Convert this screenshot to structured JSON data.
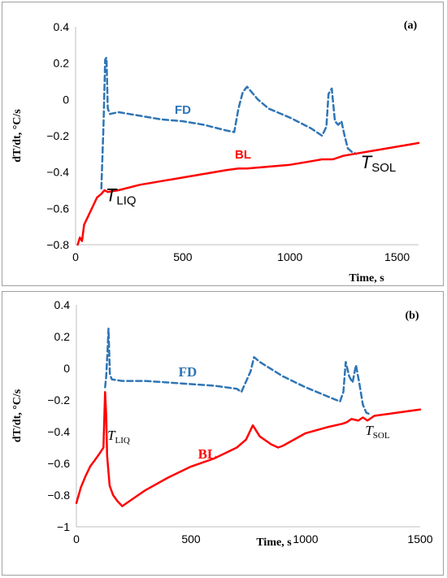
{
  "chart_data": [
    {
      "type": "line",
      "panel_label": "(a)",
      "xlabel": "Time, s",
      "ylabel": "dT/dt, °C/s",
      "xlim": [
        0,
        1600
      ],
      "ylim": [
        -0.8,
        0.4
      ],
      "xticks": [
        "0",
        "500",
        "1000",
        "1500"
      ],
      "yticks": [
        "−0.8",
        "−0.6",
        "−0.4",
        "−0.2",
        "0",
        "0.2",
        "0.4"
      ],
      "grid": false,
      "series": [
        {
          "name": "FD",
          "color": "#2e75b6",
          "style": "dashed",
          "x": [
            120,
            130,
            138,
            144,
            150,
            160,
            200,
            300,
            400,
            500,
            600,
            700,
            740,
            760,
            780,
            800,
            850,
            900,
            1000,
            1100,
            1150,
            1170,
            1180,
            1195,
            1210,
            1225,
            1240,
            1255,
            1270,
            1290,
            1310
          ],
          "y": [
            -0.49,
            -0.15,
            0.22,
            0.23,
            -0.05,
            -0.08,
            -0.07,
            -0.09,
            -0.11,
            -0.12,
            -0.14,
            -0.17,
            -0.18,
            -0.05,
            0.04,
            0.07,
            0.0,
            -0.05,
            -0.1,
            -0.16,
            -0.2,
            -0.15,
            0.03,
            0.06,
            -0.12,
            -0.14,
            -0.12,
            -0.2,
            -0.27,
            -0.29,
            -0.3
          ]
        },
        {
          "name": "BL",
          "color": "#ff0000",
          "style": "solid",
          "x": [
            10,
            20,
            30,
            40,
            60,
            80,
            100,
            120,
            135,
            150,
            200,
            300,
            400,
            500,
            600,
            700,
            760,
            800,
            900,
            1000,
            1100,
            1150,
            1200,
            1250,
            1300,
            1400,
            1500,
            1600
          ],
          "y": [
            -0.8,
            -0.76,
            -0.78,
            -0.69,
            -0.64,
            -0.59,
            -0.54,
            -0.52,
            -0.5,
            -0.51,
            -0.5,
            -0.47,
            -0.45,
            -0.43,
            -0.41,
            -0.39,
            -0.38,
            -0.38,
            -0.37,
            -0.36,
            -0.34,
            -0.33,
            -0.33,
            -0.31,
            -0.3,
            -0.28,
            -0.26,
            -0.24
          ]
        }
      ],
      "annotations": [
        {
          "base": "T",
          "sub": "LIQ",
          "x": 140,
          "y": -0.56
        },
        {
          "base": "T",
          "sub": "SOL",
          "x": 1330,
          "y": -0.38
        }
      ]
    },
    {
      "type": "line",
      "panel_label": "(b)",
      "xlabel": "Time, s",
      "ylabel": "dT/dt, °C/s",
      "xlim": [
        0,
        1500
      ],
      "ylim": [
        -1,
        0.4
      ],
      "xticks": [
        "0",
        "500",
        "1000",
        "1500"
      ],
      "yticks": [
        "−1",
        "−0.8",
        "−0.6",
        "−0.4",
        "−0.2",
        "0",
        "0.2",
        "0.4"
      ],
      "grid": false,
      "series": [
        {
          "name": "FD",
          "color": "#2e75b6",
          "style": "dashed",
          "x": [
            125,
            130,
            136,
            140,
            146,
            155,
            200,
            300,
            400,
            500,
            600,
            700,
            720,
            760,
            775,
            800,
            900,
            1000,
            1100,
            1150,
            1165,
            1175,
            1190,
            1205,
            1220,
            1235,
            1250,
            1265,
            1280
          ],
          "y": [
            -0.12,
            -0.05,
            0.12,
            0.25,
            -0.04,
            -0.07,
            -0.08,
            -0.08,
            -0.09,
            -0.1,
            -0.11,
            -0.13,
            -0.15,
            -0.02,
            0.07,
            0.04,
            -0.05,
            -0.12,
            -0.18,
            -0.21,
            -0.15,
            0.04,
            -0.05,
            -0.09,
            0.02,
            -0.1,
            -0.23,
            -0.28,
            -0.29
          ]
        },
        {
          "name": "BL",
          "color": "#ff0000",
          "style": "solid",
          "x": [
            0,
            10,
            20,
            40,
            60,
            80,
            100,
            118,
            125,
            130,
            134,
            138,
            145,
            160,
            180,
            200,
            250,
            300,
            400,
            500,
            600,
            700,
            740,
            770,
            800,
            850,
            880,
            900,
            1000,
            1100,
            1160,
            1180,
            1200,
            1230,
            1250,
            1270,
            1300,
            1400,
            1500
          ],
          "y": [
            -0.85,
            -0.8,
            -0.75,
            -0.68,
            -0.62,
            -0.58,
            -0.54,
            -0.5,
            -0.15,
            -0.3,
            -0.55,
            -0.62,
            -0.74,
            -0.8,
            -0.84,
            -0.87,
            -0.82,
            -0.77,
            -0.69,
            -0.62,
            -0.57,
            -0.5,
            -0.45,
            -0.36,
            -0.43,
            -0.48,
            -0.5,
            -0.49,
            -0.41,
            -0.37,
            -0.35,
            -0.34,
            -0.32,
            -0.33,
            -0.31,
            -0.33,
            -0.3,
            -0.28,
            -0.26
          ]
        }
      ],
      "annotations": [
        {
          "base": "T",
          "sub": "LIQ",
          "x": 135,
          "y": -0.45
        },
        {
          "base": "T",
          "sub": "SOL",
          "x": 1260,
          "y": -0.42
        }
      ]
    }
  ]
}
